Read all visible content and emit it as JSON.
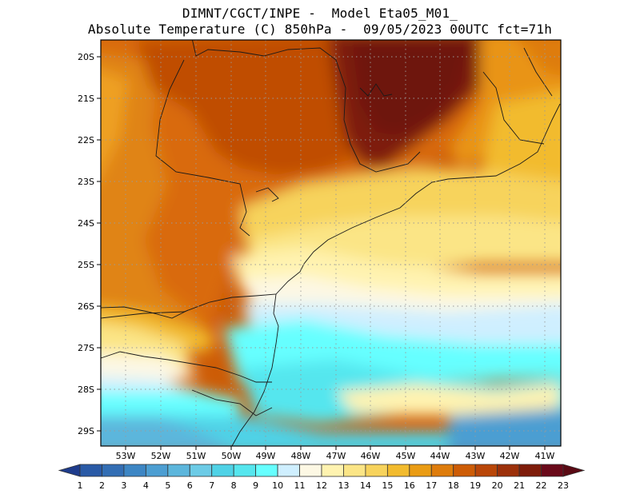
{
  "header": {
    "line1": "DIMNT/CGCT/INPE -  Model Eta05_M01_",
    "line2": "Absolute Temperature (C) 850hPa -  09/05/2023 00UTC fct=71h"
  },
  "axes": {
    "lat_labels": [
      "20S",
      "21S",
      "22S",
      "23S",
      "24S",
      "25S",
      "26S",
      "27S",
      "28S",
      "29S"
    ],
    "lon_labels": [
      "53W",
      "52W",
      "51W",
      "50W",
      "49W",
      "48W",
      "47W",
      "46W",
      "45W",
      "44W",
      "43W",
      "42W",
      "41W"
    ]
  },
  "colorbar": {
    "labels": [
      "1",
      "2",
      "3",
      "4",
      "5",
      "6",
      "7",
      "8",
      "9",
      "10",
      "11",
      "12",
      "13",
      "14",
      "15",
      "16",
      "17",
      "18",
      "19",
      "20",
      "21",
      "22",
      "23"
    ],
    "colors": [
      "#1e3c8c",
      "#2a5aa6",
      "#336eb4",
      "#3d86c4",
      "#4c9ed2",
      "#5cb6dc",
      "#6ccbe6",
      "#4fd2e6",
      "#55e6ee",
      "#66ffff",
      "#cfefff",
      "#fdf8e4",
      "#fff3b0",
      "#fbe586",
      "#f7d35c",
      "#f2bb2e",
      "#ea9c14",
      "#de7c0c",
      "#cd5c06",
      "#b94608",
      "#9c300a",
      "#7e1c0a",
      "#6a0a1a",
      "#5a0a14"
    ]
  }
}
